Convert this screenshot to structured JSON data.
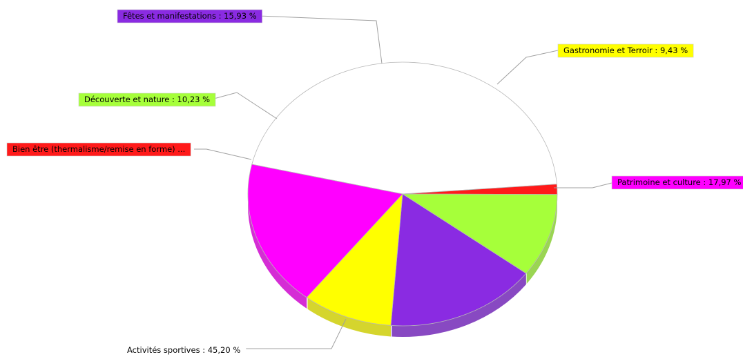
{
  "chart_data": {
    "type": "pie",
    "title": "",
    "legend": "none",
    "label_format": "{name} : {value}",
    "slices": [
      {
        "name": "Activités sportives",
        "value": 45.2,
        "label": "Activités sportives : 45,20 %",
        "color": "#ffffff",
        "label_bg": "#ffffff",
        "label_text": "#000000"
      },
      {
        "name": "Bien être (thermalisme/remise en forme)",
        "value": 1.24,
        "label": "Bien être (thermalisme/remise en forme) ...",
        "color": "#ff1a1a",
        "label_bg": "#ff1a1a",
        "label_text": "#000000"
      },
      {
        "name": "Découverte et nature",
        "value": 10.23,
        "label": "Découverte et nature : 10,23 %",
        "color": "#a6ff3a",
        "label_bg": "#a6ff3a",
        "label_text": "#000000"
      },
      {
        "name": "Fêtes et manifestations",
        "value": 15.93,
        "label": "Fêtes et manifestations : 15,93 %",
        "color": "#8a2be2",
        "label_bg": "#8a2be2",
        "label_text": "#000000"
      },
      {
        "name": "Gastronomie et Terroir",
        "value": 9.43,
        "label": "Gastronomie et Terroir : 9,43 %",
        "color": "#ffff00",
        "label_bg": "#ffff00",
        "label_text": "#000000"
      },
      {
        "name": "Patrimoine et culture",
        "value": 17.97,
        "label": "Patrimoine et culture : 17,97 %",
        "color": "#ff00ff",
        "label_bg": "#ff00ff",
        "label_text": "#000000"
      }
    ]
  }
}
